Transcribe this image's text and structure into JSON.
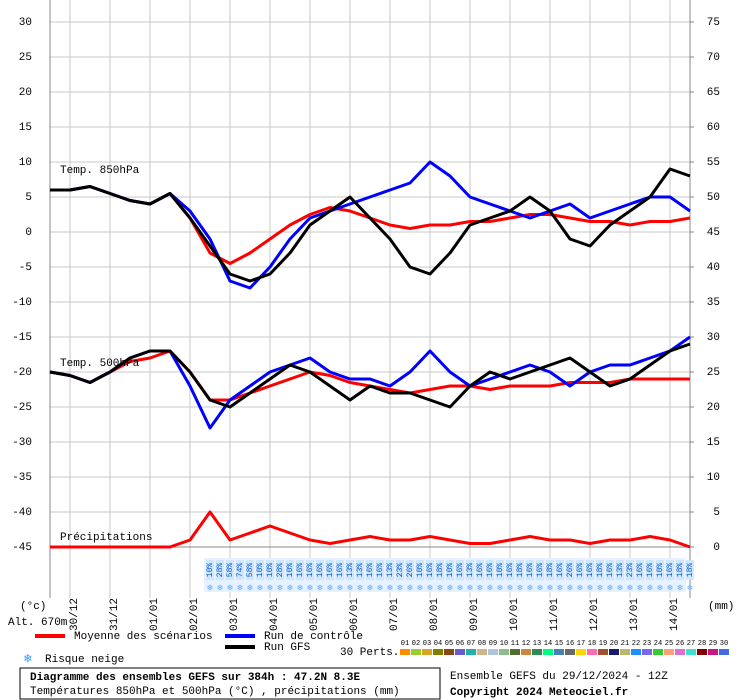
{
  "chart_data": {
    "type": "line",
    "labels": {
      "t850": "Temp. 850hPa",
      "t500": "Temp. 500hPa",
      "precip": "Précipitations",
      "yunit": "(°c)",
      "y2unit": "(mm)",
      "alt": "Alt. 670m",
      "perts": "30 Perts.",
      "snow": "Risque neige"
    },
    "footer": {
      "title": "Diagramme des ensembles GEFS sur 384h : 47.2N 8.3E",
      "subtitle": "Températures 850hPa et 500hPa (°C) , précipitations (mm)",
      "run": "Ensemble GEFS du 29/12/2024 - 12Z",
      "copyright": "Copyright 2024 Meteociel.fr"
    },
    "categories": [
      null,
      "30/12",
      null,
      "31/12",
      null,
      "01/01",
      null,
      "02/01",
      null,
      "03/01",
      null,
      "04/01",
      null,
      "05/01",
      null,
      "06/01",
      null,
      "07/01",
      null,
      "08/01",
      null,
      "09/01",
      null,
      "10/01",
      null,
      "11/01",
      null,
      "12/01",
      null,
      "13/01",
      null,
      "14/01",
      null
    ],
    "ylim": [
      -45,
      30
    ],
    "yticks": [
      30,
      25,
      20,
      15,
      10,
      5,
      0,
      -5,
      -10,
      -15,
      -20,
      -25,
      -30,
      -35,
      -40,
      -45
    ],
    "y2lim": [
      0,
      75
    ],
    "y2ticks": [
      75,
      70,
      65,
      60,
      55,
      50,
      45,
      40,
      35,
      30,
      25,
      20,
      15,
      10,
      5,
      0
    ],
    "grid": true,
    "series": [
      {
        "name": "Moyenne des scénarios",
        "color": "#ff0000",
        "width": 3,
        "values": [
          6,
          6,
          6.5,
          5.5,
          4.5,
          4,
          5.5,
          2,
          -3,
          -4.5,
          -3,
          -1,
          1,
          2.5,
          3.5,
          3,
          2,
          1,
          0.5,
          1,
          1,
          1.5,
          1.5,
          2,
          2.5,
          2.5,
          2,
          1.5,
          1.5,
          1,
          1.5,
          1.5,
          2
        ]
      },
      {
        "name": "Run de contrôle",
        "color": "#0000ff",
        "width": 3,
        "values": [
          6,
          6,
          6.5,
          5.5,
          4.5,
          4,
          5.5,
          3,
          -1,
          -7,
          -8,
          -5,
          -1,
          2,
          3,
          4,
          5,
          6,
          7,
          10,
          8,
          5,
          4,
          3,
          2,
          3,
          4,
          2,
          3,
          4,
          5,
          5,
          3
        ]
      },
      {
        "name": "Run GFS",
        "color": "#000000",
        "width": 3,
        "values": [
          6,
          6,
          6.5,
          5.5,
          4.5,
          4,
          5.5,
          2,
          -2,
          -6,
          -7,
          -6,
          -3,
          1,
          3,
          5,
          2,
          -1,
          -5,
          -6,
          -3,
          1,
          2,
          3,
          5,
          3,
          -1,
          -2,
          1,
          3,
          5,
          9,
          8
        ]
      },
      {
        "color": "#ff0000",
        "width": 3,
        "values": [
          -20,
          -20.5,
          -21.5,
          -20,
          -18.5,
          -18,
          -17,
          -20,
          -24,
          -24,
          -23,
          -22,
          -21,
          -20,
          -20.5,
          -21.5,
          -22,
          -22.5,
          -23,
          -22.5,
          -22,
          -22,
          -22.5,
          -22,
          -22,
          -22,
          -21.5,
          -21.5,
          -21.5,
          -21,
          -21,
          -21,
          -21
        ]
      },
      {
        "color": "#0000ff",
        "width": 3,
        "values": [
          -20,
          -20.5,
          -21.5,
          -20,
          -18,
          -17,
          -17,
          -22,
          -28,
          -24,
          -22,
          -20,
          -19,
          -18,
          -20,
          -21,
          -21,
          -22,
          -20,
          -17,
          -20,
          -22,
          -21,
          -20,
          -19,
          -20,
          -22,
          -20,
          -19,
          -19,
          -18,
          -17,
          -15
        ]
      },
      {
        "color": "#000000",
        "width": 3,
        "values": [
          -20,
          -20.5,
          -21.5,
          -20,
          -18,
          -17,
          -17,
          -20,
          -24,
          -25,
          -23,
          -21,
          -19,
          -20,
          -22,
          -24,
          -22,
          -23,
          -23,
          -24,
          -25,
          -22,
          -20,
          -21,
          -20,
          -19,
          -18,
          -20,
          -22,
          -21,
          -19,
          -17,
          -16
        ]
      },
      {
        "color": "#ff0000",
        "width": 3,
        "axis": "y2",
        "values": [
          0,
          0,
          0,
          0,
          0,
          0,
          0,
          1,
          5,
          1,
          2,
          3,
          2,
          1,
          0.5,
          1,
          1.5,
          1,
          1,
          1.5,
          1,
          0.5,
          0.5,
          1,
          1.5,
          1,
          1,
          0.5,
          1,
          1,
          1.5,
          1,
          0
        ]
      }
    ],
    "perturbations": [
      {
        "name": "01",
        "color": "#ff8c00"
      },
      {
        "name": "02",
        "color": "#9acd32"
      },
      {
        "name": "03",
        "color": "#daa520"
      },
      {
        "name": "04",
        "color": "#808000"
      },
      {
        "name": "05",
        "color": "#8b4513"
      },
      {
        "name": "06",
        "color": "#6a5acd"
      },
      {
        "name": "07",
        "color": "#20b2aa"
      },
      {
        "name": "08",
        "color": "#d2b48c"
      },
      {
        "name": "09",
        "color": "#b0c4de"
      },
      {
        "name": "10",
        "color": "#8fbc8f"
      },
      {
        "name": "11",
        "color": "#556b2f"
      },
      {
        "name": "12",
        "color": "#cd853f"
      },
      {
        "name": "13",
        "color": "#2e8b57"
      },
      {
        "name": "14",
        "color": "#00ff7f"
      },
      {
        "name": "15",
        "color": "#4682b4"
      },
      {
        "name": "16",
        "color": "#696969"
      },
      {
        "name": "17",
        "color": "#ffd700"
      },
      {
        "name": "18",
        "color": "#ff69b4"
      },
      {
        "name": "19",
        "color": "#a0522d"
      },
      {
        "name": "20",
        "color": "#191970"
      },
      {
        "name": "21",
        "color": "#bdb76b"
      },
      {
        "name": "22",
        "color": "#1e90ff"
      },
      {
        "name": "23",
        "color": "#7b68ee"
      },
      {
        "name": "24",
        "color": "#32cd32"
      },
      {
        "name": "25",
        "color": "#ffa07a"
      },
      {
        "name": "26",
        "color": "#da70d6"
      },
      {
        "name": "27",
        "color": "#40e0d0"
      },
      {
        "name": "28",
        "color": "#800000"
      },
      {
        "name": "29",
        "color": "#c71585"
      },
      {
        "name": "30",
        "color": "#4169e1"
      }
    ],
    "snow_risk": {
      "values": [
        null,
        null,
        null,
        null,
        null,
        null,
        null,
        null,
        null,
        null,
        null,
        null,
        null,
        null,
        null,
        null,
        10,
        28,
        58,
        74,
        58,
        10,
        10,
        28,
        10,
        16,
        16,
        16,
        16,
        16,
        13,
        13,
        16,
        16,
        13,
        23,
        26,
        10,
        16,
        18,
        10,
        16,
        13,
        16,
        16,
        10,
        16,
        18,
        16,
        16,
        18,
        16,
        26,
        16,
        16,
        18,
        16,
        13,
        23,
        16,
        16,
        10,
        16,
        18,
        18
      ],
      "value_labels": [
        null,
        null,
        null,
        null,
        null,
        null,
        null,
        null,
        null,
        null,
        null,
        null,
        null,
        null,
        null,
        null,
        "10%",
        "28%",
        "58%",
        "74%",
        "58%",
        "10%",
        "10%",
        "28%",
        "10%",
        "16%",
        "16%",
        "16%",
        "16%",
        "16%",
        "13%",
        "13%",
        "16%",
        "16%",
        "13%",
        "23%",
        "26%",
        "10%",
        "16%",
        "18%",
        "10%",
        "16%",
        "13%",
        "16%",
        "16%",
        "10%",
        "16%",
        "18%",
        "16%",
        "16%",
        "18%",
        "16%",
        "26%",
        "16%",
        "16%",
        "18%",
        "16%",
        "13%",
        "23%",
        "16%",
        "16%",
        "10%",
        "16%",
        "18%",
        "18%"
      ]
    }
  }
}
